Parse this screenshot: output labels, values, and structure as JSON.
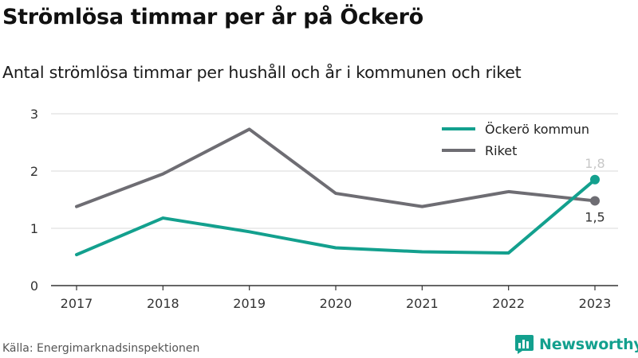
{
  "title": "Strömlösa timmar per år på Öckerö",
  "subtitle": "Antal strömlösa timmar per hushåll och år i kommunen och riket",
  "source": "Källa: Energimarknadsinspektionen",
  "brand": {
    "name": "Newsworthy",
    "icon": "newsworthy-logo-icon",
    "color": "#13a08e"
  },
  "chart_data": {
    "type": "line",
    "title": "Strömlösa timmar per år på Öckerö",
    "subtitle": "Antal strömlösa timmar per hushåll och år i kommunen och riket",
    "x": [
      "2017",
      "2018",
      "2019",
      "2020",
      "2021",
      "2022",
      "2023"
    ],
    "series": [
      {
        "name": "Öckerö kommun",
        "color": "#13a08e",
        "values": [
          0.54,
          1.18,
          0.94,
          0.66,
          0.59,
          0.57,
          1.85
        ],
        "end_label": "1,8"
      },
      {
        "name": "Riket",
        "color": "#6e6d73",
        "values": [
          1.38,
          1.95,
          2.73,
          1.61,
          1.38,
          1.64,
          1.48
        ],
        "end_label": "1,5"
      }
    ],
    "yticks": [
      "0",
      "1",
      "2",
      "3"
    ],
    "ylim": [
      0,
      3
    ],
    "xlabel": "",
    "ylabel": "",
    "grid": "horizontal",
    "legend_position": "top-right"
  }
}
